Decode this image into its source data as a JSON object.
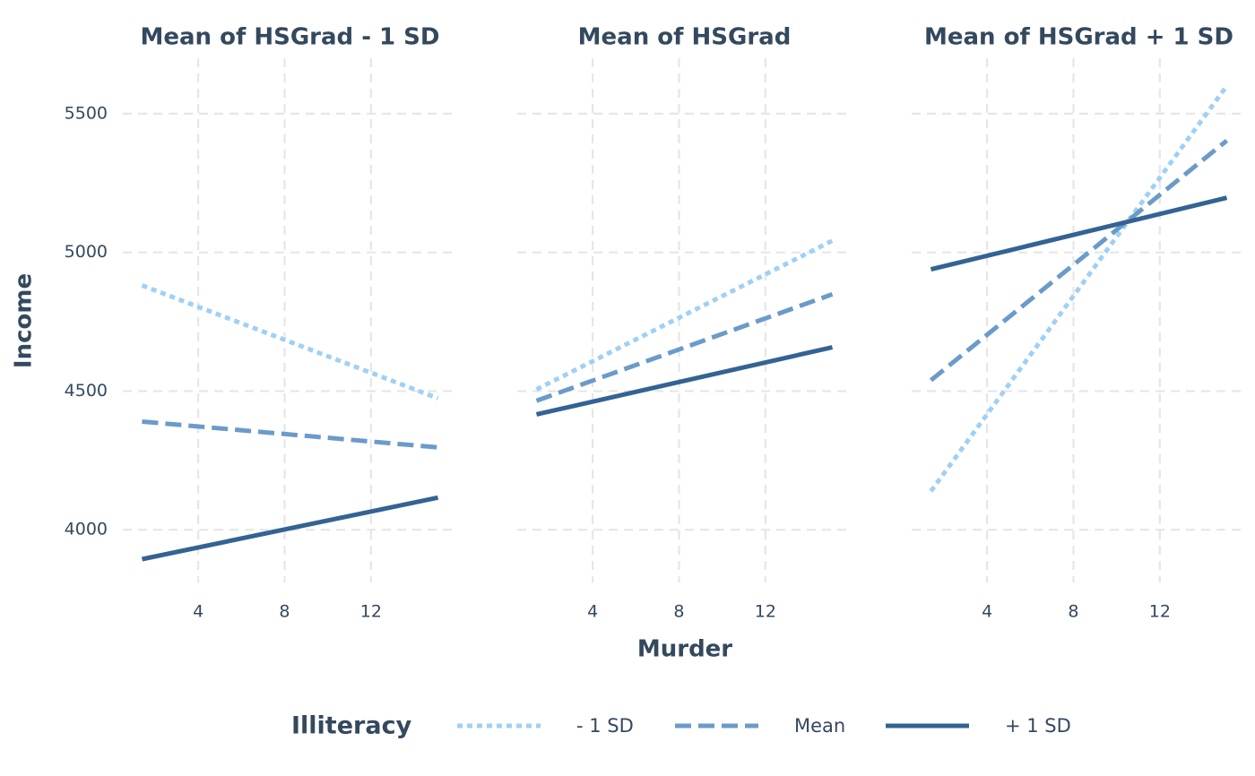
{
  "chart_data": [
    {
      "type": "line",
      "title": "Mean of HSGrad - 1 SD",
      "x": [
        1.4,
        15.1
      ],
      "series": [
        {
          "name": "- 1 SD",
          "color": "#9fd0f5",
          "linestyle": "dotted",
          "values": [
            4881,
            4474
          ]
        },
        {
          "name": "Mean",
          "color": "#6a9bc9",
          "linestyle": "dashed",
          "values": [
            4390,
            4297
          ]
        },
        {
          "name": "+ 1 SD",
          "color": "#336394",
          "linestyle": "solid",
          "values": [
            3894,
            4116
          ]
        }
      ],
      "xlim": [
        0.715,
        15.785
      ],
      "ylim": [
        3810,
        5700
      ],
      "xticks": [
        4,
        8,
        12
      ],
      "yticks": [
        4000,
        4500,
        5000,
        5500
      ],
      "grid": true
    },
    {
      "type": "line",
      "title": "Mean of HSGrad",
      "x": [
        1.4,
        15.1
      ],
      "series": [
        {
          "name": "- 1 SD",
          "color": "#9fd0f5",
          "linestyle": "dotted",
          "values": [
            4506,
            5042
          ]
        },
        {
          "name": "Mean",
          "color": "#6a9bc9",
          "linestyle": "dashed",
          "values": [
            4465,
            4849
          ]
        },
        {
          "name": "+ 1 SD",
          "color": "#336394",
          "linestyle": "solid",
          "values": [
            4416,
            4658
          ]
        }
      ],
      "xlim": [
        0.715,
        15.785
      ],
      "ylim": [
        3810,
        5700
      ],
      "xticks": [
        4,
        8,
        12
      ],
      "yticks": [
        4000,
        4500,
        5000,
        5500
      ],
      "grid": true
    },
    {
      "type": "line",
      "title": "Mean of HSGrad + 1 SD",
      "x": [
        1.4,
        15.1
      ],
      "series": [
        {
          "name": "- 1 SD",
          "color": "#9fd0f5",
          "linestyle": "dotted",
          "values": [
            4139,
            5600
          ]
        },
        {
          "name": "Mean",
          "color": "#6a9bc9",
          "linestyle": "dashed",
          "values": [
            4539,
            5403
          ]
        },
        {
          "name": "+ 1 SD",
          "color": "#336394",
          "linestyle": "solid",
          "values": [
            4939,
            5197
          ]
        }
      ],
      "xlim": [
        0.715,
        15.785
      ],
      "ylim": [
        3810,
        5700
      ],
      "xticks": [
        4,
        8,
        12
      ],
      "yticks": [
        4000,
        4500,
        5000,
        5500
      ],
      "grid": true
    }
  ],
  "xlabel": "Murder",
  "ylabel": "Income",
  "legend_title": "Illiteracy"
}
